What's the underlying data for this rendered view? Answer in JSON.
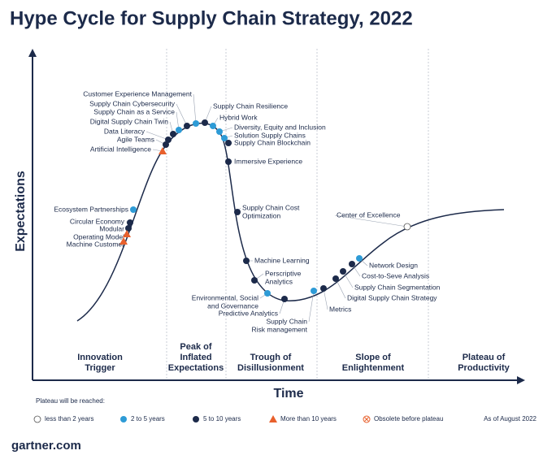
{
  "title": "Hype Cycle for Supply Chain Strategy, 2022",
  "y_axis_label": "Expectations",
  "x_axis_label": "Time",
  "phases": [
    [
      "Innovation",
      "Trigger"
    ],
    [
      "Peak of",
      "Inflated",
      "Expectations"
    ],
    [
      "Trough of",
      "Disillusionment"
    ],
    [
      "Slope of",
      "Enlightenment"
    ],
    [
      "Plateau of",
      "Productivity"
    ]
  ],
  "points": [
    {
      "label": [
        "Customer Experience Management"
      ],
      "plateau": "2 to 5 years"
    },
    {
      "label": [
        "Supply Chain Cybersecurity"
      ],
      "plateau": "5 to 10 years"
    },
    {
      "label": [
        "Supply Chain as a Service"
      ],
      "plateau": "2 to 5 years"
    },
    {
      "label": [
        "Digital Supply Chain Twin"
      ],
      "plateau": "5 to 10 years"
    },
    {
      "label": [
        "Data Literacy"
      ],
      "plateau": "5 to 10 years"
    },
    {
      "label": [
        "Agile Teams"
      ],
      "plateau": "5 to 10 years"
    },
    {
      "label": [
        "Artificial Intelligence"
      ],
      "plateau": "More than 10 years"
    },
    {
      "label": [
        "Supply Chain Resilience"
      ],
      "plateau": "5 to 10 years"
    },
    {
      "label": [
        "Hybrid Work"
      ],
      "plateau": "2 to 5 years"
    },
    {
      "label": [
        "Diversity, Equity and Inclusion"
      ],
      "plateau": "2 to 5 years"
    },
    {
      "label": [
        "Solution Supply Chains"
      ],
      "plateau": "2 to 5 years"
    },
    {
      "label": [
        "Supply Chain Blockchain"
      ],
      "plateau": "5 to 10 years"
    },
    {
      "label": [
        "Immersive Experience"
      ],
      "plateau": "5 to 10 years"
    },
    {
      "label": [
        "Supply Chain Cost",
        "Optimization"
      ],
      "plateau": "5 to 10 years"
    },
    {
      "label": [
        "Machine Learning"
      ],
      "plateau": "5 to 10 years"
    },
    {
      "label": [
        "Perscriptive",
        "Analytics"
      ],
      "plateau": "5 to 10 years"
    },
    {
      "label": [
        "Environmental, Social",
        "and Governance"
      ],
      "plateau": "2 to 5 years"
    },
    {
      "label": [
        "Predictive Analytics"
      ],
      "plateau": "5 to 10 years"
    },
    {
      "label": [
        "Supply Chain",
        "Risk management"
      ],
      "plateau": "2 to 5 years"
    },
    {
      "label": [
        "Metrics"
      ],
      "plateau": "5 to 10 years"
    },
    {
      "label": [
        "Digital Supply Chain Strategy"
      ],
      "plateau": "5 to 10 years"
    },
    {
      "label": [
        "Supply Chain Segmentation"
      ],
      "plateau": "5 to 10 years"
    },
    {
      "label": [
        "Cost-to-Seve Analysis"
      ],
      "plateau": "5 to 10 years"
    },
    {
      "label": [
        "Network Design"
      ],
      "plateau": "2 to 5 years"
    },
    {
      "label": [
        "Center of Excellence"
      ],
      "plateau": "less than 2 years"
    },
    {
      "label": [
        "Ecosystem Partnerships"
      ],
      "plateau": "2 to 5 years"
    },
    {
      "label": [
        "Circular Economy"
      ],
      "plateau": "5 to 10 years"
    },
    {
      "label": [
        "Modular"
      ],
      "plateau": "5 to 10 years"
    },
    {
      "label": [
        "Operating Model"
      ],
      "plateau": "More than 10 years"
    },
    {
      "label": [
        "Machine Customer"
      ],
      "plateau": "More than 10 years"
    }
  ],
  "legend": {
    "title": "Plateau will be reached:",
    "items": [
      "less than 2 years",
      "2 to 5 years",
      "5 to 10 years",
      "More than 10 years",
      "Obsolete before plateau"
    ]
  },
  "as_of": "As of August 2022",
  "footer": "gartner.com"
}
